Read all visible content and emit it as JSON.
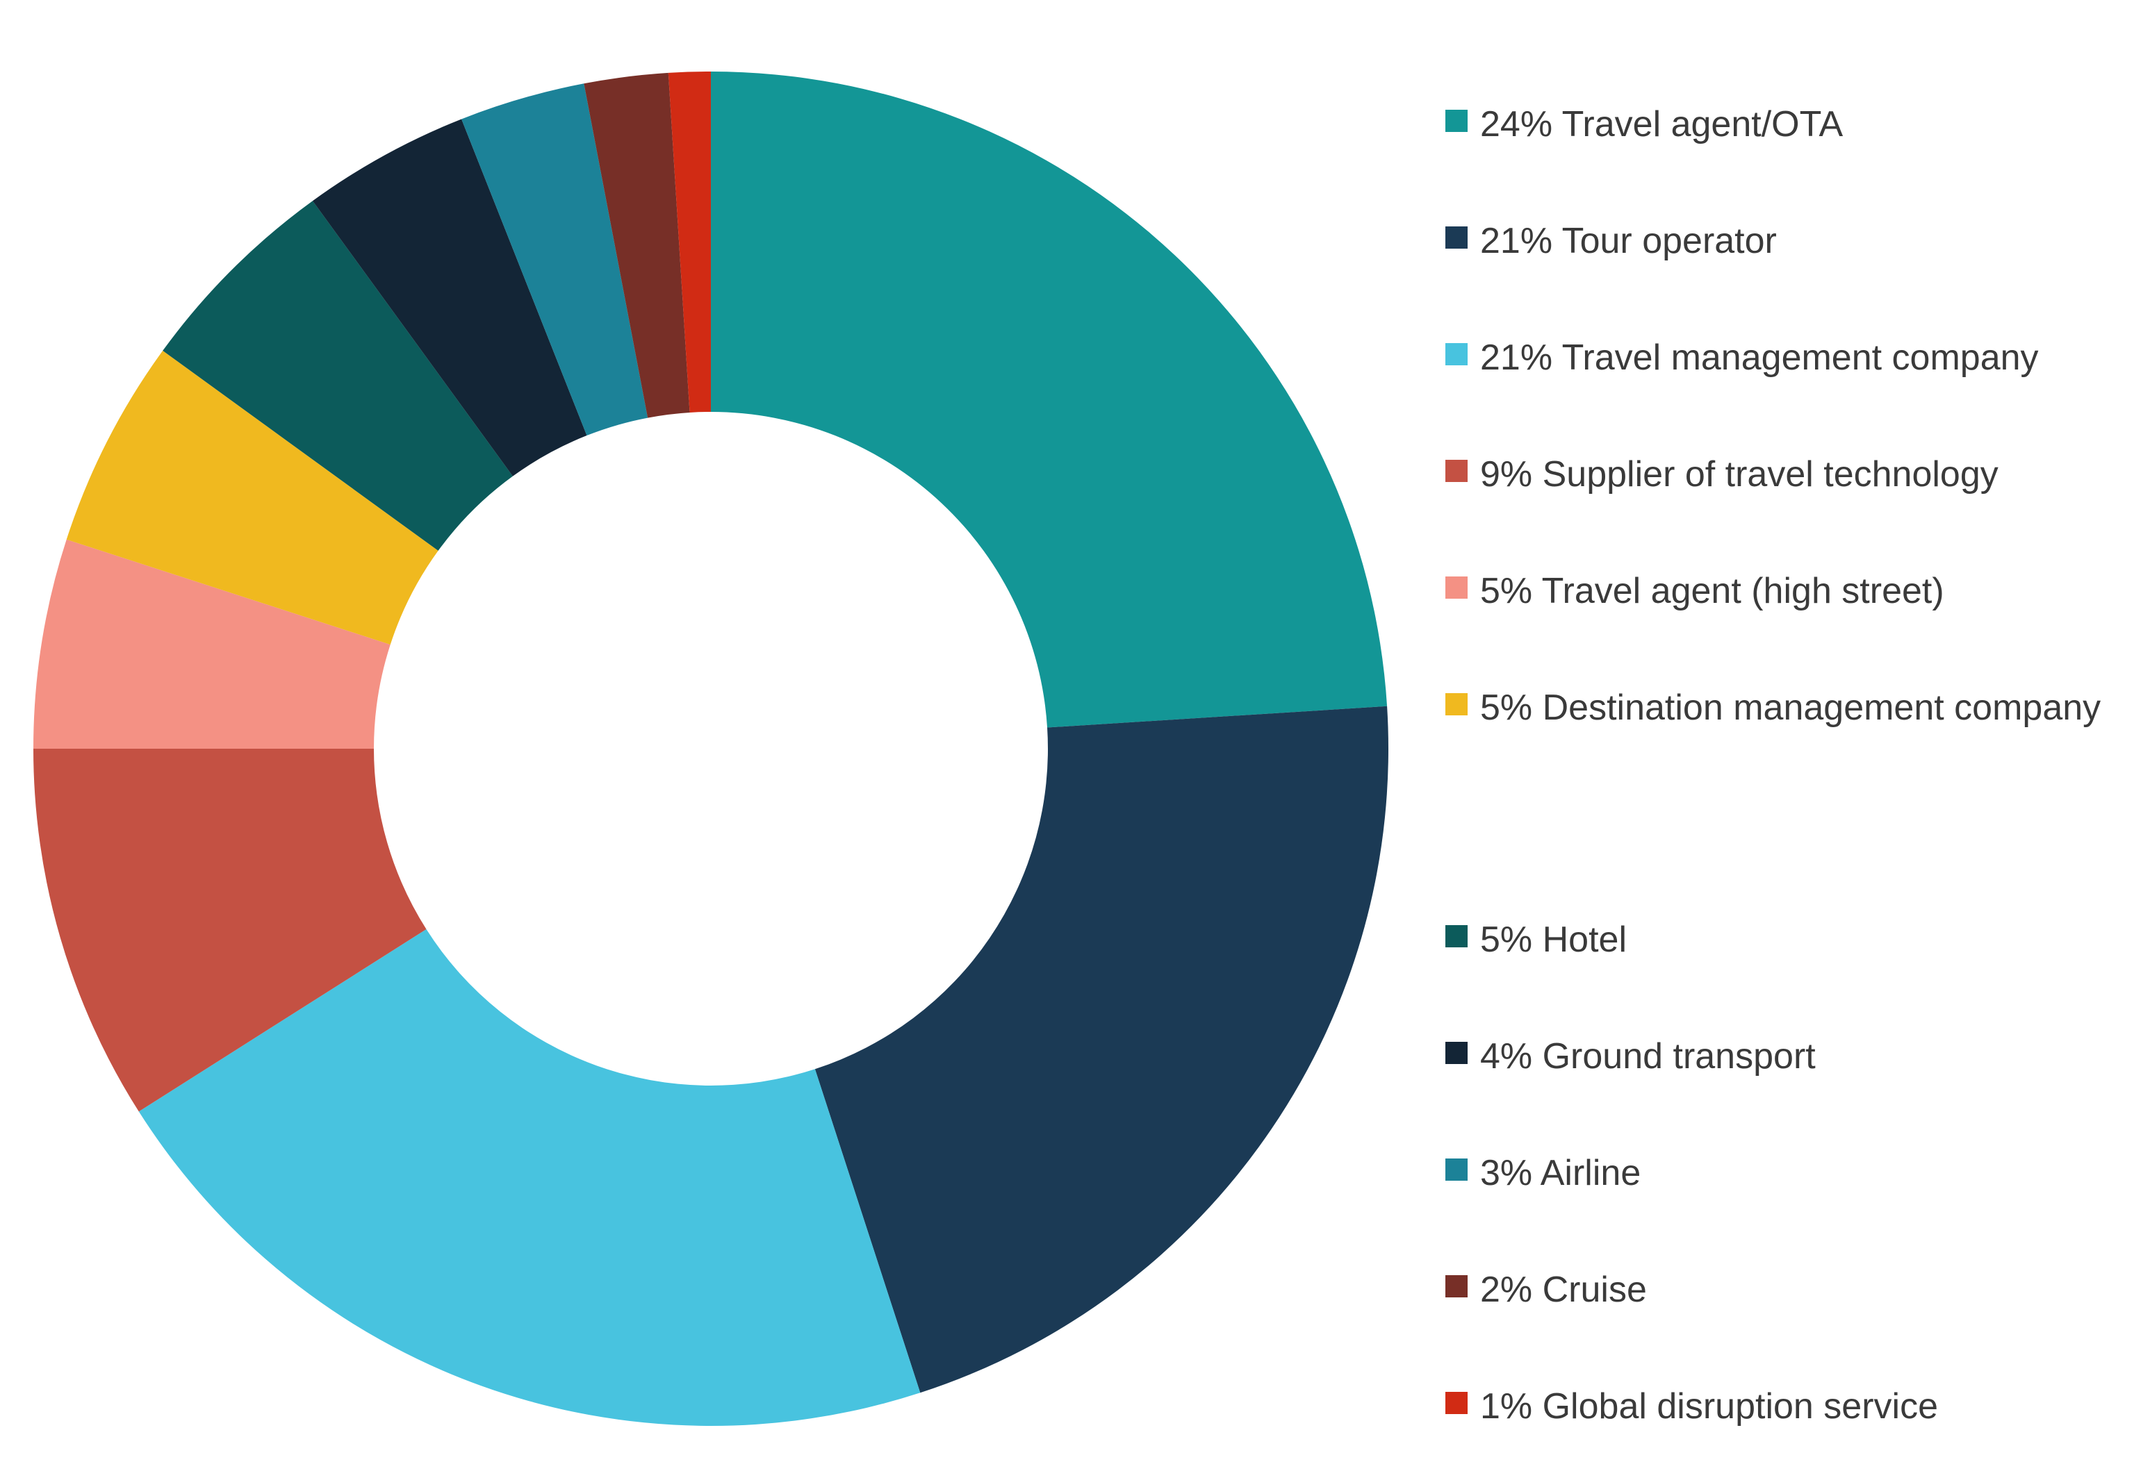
{
  "chart_data": {
    "type": "pie",
    "variant": "donut",
    "legend_position": "right",
    "slices": [
      {
        "label": "24% Travel agent/OTA",
        "value": 24,
        "color": "#139696"
      },
      {
        "label": "21% Tour operator",
        "value": 21,
        "color": "#1b3a55"
      },
      {
        "label": "21% Travel management company",
        "value": 21,
        "color": "#48c3df"
      },
      {
        "label": "9% Supplier of travel technology",
        "value": 9,
        "color": "#c45143"
      },
      {
        "label": "5% Travel agent (high street)",
        "value": 5,
        "color": "#f49184"
      },
      {
        "label": "5% Destination management company",
        "value": 5,
        "color": "#f0b91f"
      },
      {
        "label": "5% Hotel",
        "value": 5,
        "color": "#0c5b5b"
      },
      {
        "label": "4% Ground transport",
        "value": 4,
        "color": "#132536"
      },
      {
        "label": "3% Airline",
        "value": 3,
        "color": "#1c8298"
      },
      {
        "label": "2% Cruise",
        "value": 2,
        "color": "#772f27"
      },
      {
        "label": "1% Global disruption service",
        "value": 1,
        "color": "#d12b14"
      }
    ]
  }
}
